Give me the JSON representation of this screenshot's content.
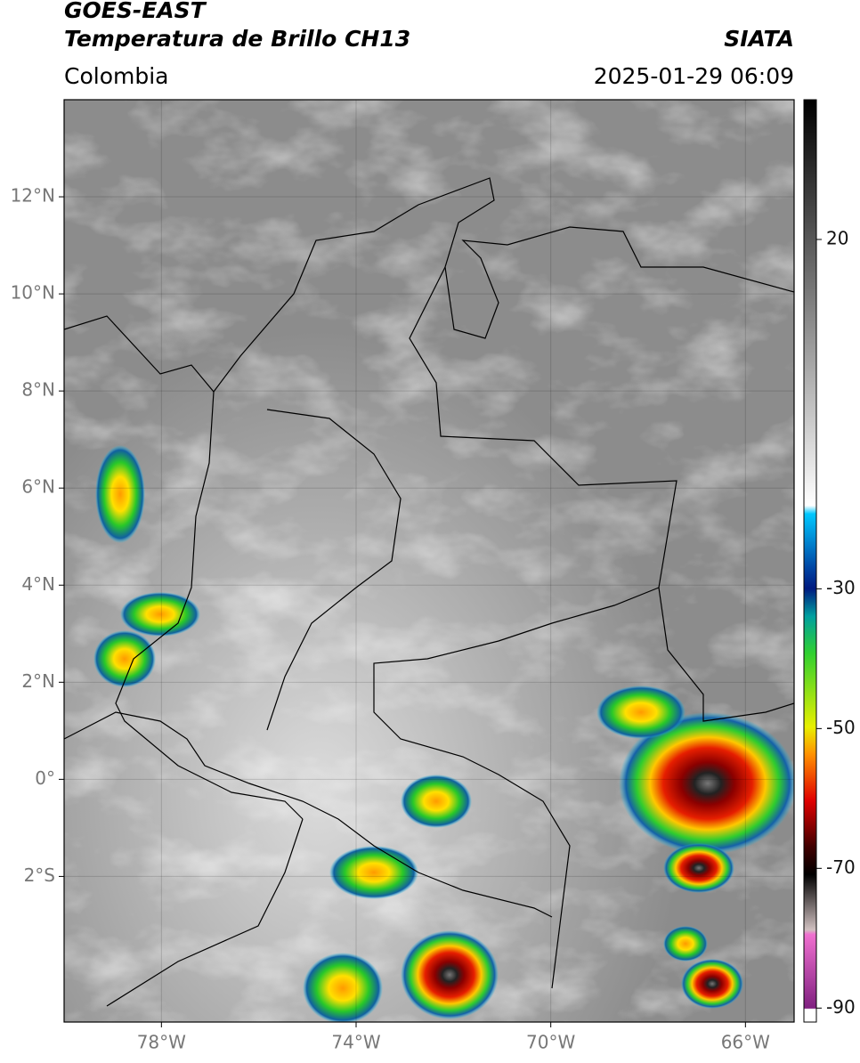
{
  "header": {
    "title": "GOES-EAST",
    "subtitle": "Temperatura de Brillo CH13",
    "region": "Colombia",
    "source": "SIATA",
    "datetime": "2025-01-29 06:09"
  },
  "map": {
    "xlim": [
      -80,
      -65
    ],
    "ylim": [
      -5,
      14
    ],
    "xticks": [
      {
        "value": -78,
        "label": "78°W"
      },
      {
        "value": -74,
        "label": "74°W"
      },
      {
        "value": -70,
        "label": "70°W"
      },
      {
        "value": -66,
        "label": "66°W"
      }
    ],
    "yticks": [
      {
        "value": 12,
        "label": "12°N"
      },
      {
        "value": 10,
        "label": "10°N"
      },
      {
        "value": 8,
        "label": "8°N"
      },
      {
        "value": 6,
        "label": "6°N"
      },
      {
        "value": 4,
        "label": "4°N"
      },
      {
        "value": 2,
        "label": "2°N"
      },
      {
        "value": 0,
        "label": "0°"
      },
      {
        "value": -2,
        "label": "2°S"
      }
    ],
    "grid": true
  },
  "colorbar": {
    "lim": [
      -92,
      40
    ],
    "ticks": [
      20,
      -30,
      -50,
      -70,
      -90
    ]
  }
}
